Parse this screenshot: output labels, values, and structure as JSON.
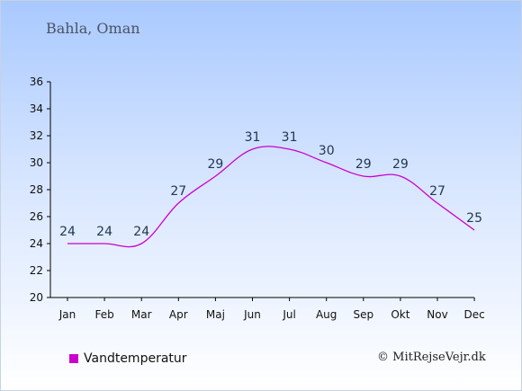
{
  "location": "Bahla, Oman",
  "credit": "© MitRejseVejr.dk",
  "chart_data": {
    "type": "line",
    "categories": [
      "Jan",
      "Feb",
      "Mar",
      "Apr",
      "Maj",
      "Jun",
      "Jul",
      "Aug",
      "Sep",
      "Okt",
      "Nov",
      "Dec"
    ],
    "series": [
      {
        "name": "Vandtemperatur",
        "values": [
          24,
          24,
          24,
          27,
          29,
          31,
          31,
          30,
          29,
          29,
          27,
          25
        ],
        "color": "#cc00cc"
      }
    ],
    "ylim": [
      20,
      36
    ],
    "yticks": [
      20,
      22,
      24,
      26,
      28,
      30,
      32,
      34,
      36
    ],
    "grid": false,
    "legend": "bottom-left"
  }
}
